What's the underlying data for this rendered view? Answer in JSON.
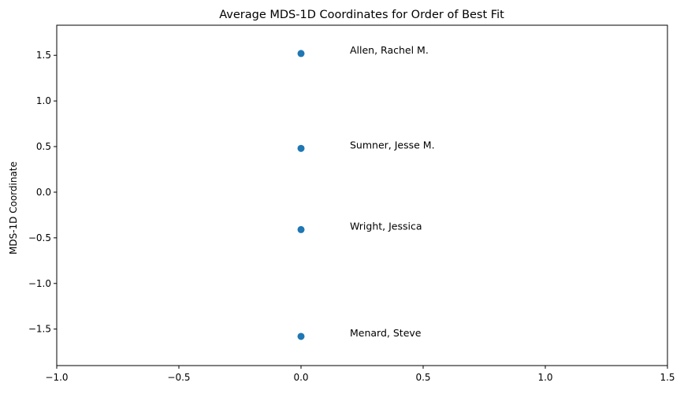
{
  "chart_data": {
    "type": "scatter",
    "title": "Average MDS-1D Coordinates for Order of Best Fit",
    "xlabel": "",
    "ylabel": "MDS-1D Coordinate",
    "xlim": [
      -1.0,
      1.5
    ],
    "ylim": [
      -1.9,
      1.83
    ],
    "xticks": [
      -1.0,
      -0.5,
      0.0,
      0.5,
      1.0,
      1.5
    ],
    "xtick_labels": [
      "−1.0",
      "−0.5",
      "0.0",
      "0.5",
      "1.0",
      "1.5"
    ],
    "yticks": [
      -1.5,
      -1.0,
      -0.5,
      0.0,
      0.5,
      1.0,
      1.5
    ],
    "ytick_labels": [
      "−1.5",
      "−1.0",
      "−0.5",
      "0.0",
      "0.5",
      "1.0",
      "1.5"
    ],
    "grid": false,
    "marker_color": "#1f77b4",
    "label_offset_x": 0.2,
    "points": [
      {
        "label": "Allen, Rachel M.",
        "x": 0.0,
        "y": 1.52
      },
      {
        "label": "Sumner, Jesse M.",
        "x": 0.0,
        "y": 0.48
      },
      {
        "label": "Wright, Jessica",
        "x": 0.0,
        "y": -0.41
      },
      {
        "label": "Menard, Steve",
        "x": 0.0,
        "y": -1.58
      }
    ]
  }
}
